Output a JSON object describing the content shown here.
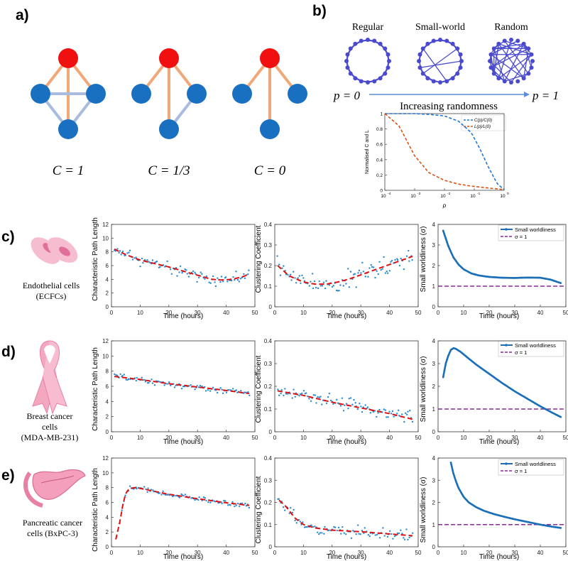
{
  "panel_labels": {
    "a": "a)",
    "b": "b)",
    "c": "c)",
    "d": "d)",
    "e": "e)"
  },
  "colors": {
    "red_node": "#f01010",
    "blue_node": "#1a70c0",
    "orange_edge": "#f0a878",
    "lightblue_edge": "#a8bce0",
    "network": "#4a4ad0",
    "scatter": "#2a8ad0",
    "fit": "#e01010",
    "sw_line": "#1a6fb8",
    "sigma1": "#8a2a9a",
    "ratio_C": "#1f77d4",
    "ratio_L": "#e05010"
  },
  "panel_a": {
    "labels": [
      "C = 1",
      "C = 1/3",
      "C = 0"
    ]
  },
  "panel_b": {
    "network_titles": [
      "Regular",
      "Small-world",
      "Random"
    ],
    "p0": "p = 0",
    "p1": "p = 1",
    "arrow_label": "Increasing randomness",
    "inset": {
      "ylabel": "Normalised  C and  L",
      "xlabel": "p",
      "legend": [
        "C(p)/C(0)",
        "L(p)/L(0)"
      ],
      "yticks": [
        "0",
        "0.2",
        "0.4",
        "0.6",
        "0.8",
        "1"
      ],
      "xticks": [
        "10",
        "10",
        "10",
        "10",
        "10"
      ],
      "xtick_exps": [
        "-4",
        "-3",
        "-2",
        "-1",
        "0"
      ]
    }
  },
  "rows": [
    {
      "name": "Endothelial cells",
      "sub": "(ECFCs)"
    },
    {
      "name": "Breast cancer",
      "sub": "cells",
      "sub2": "(MDA-MB-231)"
    },
    {
      "name": "Pancreatic cancer",
      "sub": "cells (BxPC-3)"
    }
  ],
  "axis_labels": {
    "path": "Characteristic Path Length",
    "clustering": "Clustering Coefficient",
    "sw": "Small worldliness (σ)",
    "time": "Time (hours)"
  },
  "legend_sw": [
    "Small worldliness",
    "σ = 1"
  ],
  "ticks": {
    "x": [
      "0",
      "10",
      "20",
      "30",
      "40",
      "50"
    ],
    "path_y": [
      "0",
      "2",
      "4",
      "6",
      "8",
      "10",
      "12"
    ],
    "cc_y": [
      "0",
      "0.1",
      "0.2",
      "0.3",
      "0.4"
    ],
    "sw_y": [
      "0",
      "1",
      "2",
      "3",
      "4"
    ]
  },
  "chart_data": [
    {
      "id": "inset_ratio",
      "type": "line",
      "xscale": "log",
      "xlim": [
        0.0001,
        1
      ],
      "ylim": [
        0,
        1
      ],
      "series": [
        {
          "name": "C(p)/C(0)",
          "x": [
            0.0001,
            0.001,
            0.003,
            0.01,
            0.03,
            0.08,
            0.15,
            0.3,
            0.6,
            1
          ],
          "y": [
            1,
            1,
            0.99,
            0.97,
            0.9,
            0.75,
            0.55,
            0.3,
            0.08,
            0.01
          ]
        },
        {
          "name": "L(p)/L(0)",
          "x": [
            0.0001,
            0.0003,
            0.001,
            0.003,
            0.01,
            0.03,
            0.1,
            0.3,
            1
          ],
          "y": [
            1,
            0.84,
            0.45,
            0.23,
            0.13,
            0.08,
            0.05,
            0.03,
            0.01
          ]
        }
      ]
    },
    {
      "id": "c_path",
      "type": "scatter+line",
      "xlabel": "Time (hours)",
      "ylabel": "Characteristic Path Length",
      "xlim": [
        0,
        50
      ],
      "ylim": [
        0,
        12
      ],
      "fit": {
        "x": [
          1,
          5,
          10,
          15,
          20,
          25,
          30,
          35,
          38,
          42,
          46,
          48
        ],
        "y": [
          8.4,
          7.6,
          6.8,
          6.3,
          5.8,
          5.2,
          4.6,
          4.0,
          3.9,
          4.0,
          4.4,
          4.8
        ]
      },
      "scatter": {
        "seed": 11,
        "n": 95,
        "noise": 0.8
      }
    },
    {
      "id": "c_cc",
      "type": "scatter+line",
      "xlabel": "Time (hours)",
      "ylabel": "Clustering Coefficient",
      "xlim": [
        0,
        50
      ],
      "ylim": [
        0,
        0.4
      ],
      "fit": {
        "x": [
          1,
          5,
          10,
          14,
          18,
          22,
          26,
          30,
          35,
          40,
          45,
          48
        ],
        "y": [
          0.2,
          0.15,
          0.12,
          0.11,
          0.11,
          0.12,
          0.135,
          0.155,
          0.18,
          0.205,
          0.23,
          0.245
        ]
      },
      "scatter": {
        "seed": 23,
        "n": 95,
        "noise": 0.045
      }
    },
    {
      "id": "c_sw",
      "type": "line",
      "xlabel": "Time (hours)",
      "ylabel": "Small worldliness (σ)",
      "xlim": [
        0,
        50
      ],
      "ylim": [
        0,
        4
      ],
      "series": [
        {
          "name": "Small worldliness",
          "x": [
            2,
            4,
            6,
            8,
            10,
            13,
            16,
            20,
            25,
            30,
            35,
            40,
            44,
            48
          ],
          "y": [
            3.7,
            2.95,
            2.4,
            2.05,
            1.82,
            1.62,
            1.52,
            1.45,
            1.41,
            1.4,
            1.42,
            1.41,
            1.32,
            1.15
          ]
        },
        {
          "name": "σ = 1",
          "x": [
            0,
            50
          ],
          "y": [
            1,
            1
          ]
        }
      ]
    },
    {
      "id": "d_path",
      "type": "scatter+line",
      "xlabel": "Time (hours)",
      "ylabel": "Characteristic Path Length",
      "xlim": [
        0,
        50
      ],
      "ylim": [
        0,
        12
      ],
      "fit": {
        "x": [
          1,
          10,
          20,
          30,
          40,
          48
        ],
        "y": [
          7.3,
          6.9,
          6.35,
          5.9,
          5.45,
          5.05
        ]
      },
      "scatter": {
        "seed": 37,
        "n": 95,
        "noise": 0.35
      }
    },
    {
      "id": "d_cc",
      "type": "scatter+line",
      "xlabel": "Time (hours)",
      "ylabel": "Clustering Coefficient",
      "xlim": [
        0,
        50
      ],
      "ylim": [
        0,
        0.4
      ],
      "fit": {
        "x": [
          1,
          10,
          20,
          30,
          40,
          48
        ],
        "y": [
          0.18,
          0.16,
          0.13,
          0.105,
          0.08,
          0.055
        ]
      },
      "scatter": {
        "seed": 41,
        "n": 95,
        "noise": 0.03
      }
    },
    {
      "id": "d_sw",
      "type": "line",
      "xlabel": "Time (hours)",
      "ylabel": "Small worldliness (σ)",
      "xlim": [
        0,
        50
      ],
      "ylim": [
        0,
        4
      ],
      "series": [
        {
          "name": "Small worldliness",
          "x": [
            2,
            3,
            4,
            5,
            6,
            7,
            9,
            12,
            15,
            20,
            25,
            30,
            35,
            40,
            45,
            48
          ],
          "y": [
            2.4,
            3.0,
            3.35,
            3.6,
            3.68,
            3.65,
            3.5,
            3.22,
            2.95,
            2.55,
            2.15,
            1.78,
            1.45,
            1.12,
            0.82,
            0.65
          ]
        },
        {
          "name": "σ = 1",
          "x": [
            0,
            50
          ],
          "y": [
            1,
            1
          ]
        }
      ]
    },
    {
      "id": "e_path",
      "type": "scatter+line",
      "xlabel": "Time (hours)",
      "ylabel": "Characteristic Path Length",
      "xlim": [
        0,
        50
      ],
      "ylim": [
        0,
        12
      ],
      "fit": {
        "x": [
          1.5,
          3,
          4,
          5,
          6,
          8,
          10,
          15,
          20,
          30,
          40,
          48
        ],
        "y": [
          1.0,
          3.5,
          5.8,
          7.2,
          7.8,
          8.0,
          7.9,
          7.5,
          7.1,
          6.5,
          5.95,
          5.6
        ]
      },
      "scatter": {
        "seed": 53,
        "n": 92,
        "noise": 0.3,
        "from": 3
      }
    },
    {
      "id": "e_cc",
      "type": "scatter+line",
      "xlabel": "Time (hours)",
      "ylabel": "Clustering Coefficient",
      "xlim": [
        0,
        50
      ],
      "ylim": [
        0,
        0.4
      ],
      "fit": {
        "x": [
          1.5,
          4,
          7,
          10,
          14,
          20,
          30,
          40,
          48
        ],
        "y": [
          0.21,
          0.18,
          0.13,
          0.1,
          0.085,
          0.075,
          0.068,
          0.058,
          0.05
        ]
      },
      "scatter": {
        "seed": 67,
        "n": 92,
        "noise": 0.022
      }
    },
    {
      "id": "e_sw",
      "type": "line",
      "xlabel": "Time (hours)",
      "ylabel": "Small worldliness (σ)",
      "xlim": [
        0,
        50
      ],
      "ylim": [
        0,
        4
      ],
      "series": [
        {
          "name": "Small worldliness",
          "x": [
            5,
            6,
            7,
            8,
            10,
            12,
            15,
            18,
            22,
            26,
            30,
            35,
            40,
            45,
            48
          ],
          "y": [
            3.8,
            3.3,
            2.95,
            2.65,
            2.25,
            2.0,
            1.78,
            1.62,
            1.47,
            1.35,
            1.24,
            1.12,
            1.0,
            0.9,
            0.85
          ]
        },
        {
          "name": "σ = 1",
          "x": [
            0,
            50
          ],
          "y": [
            1,
            1
          ]
        }
      ]
    }
  ]
}
